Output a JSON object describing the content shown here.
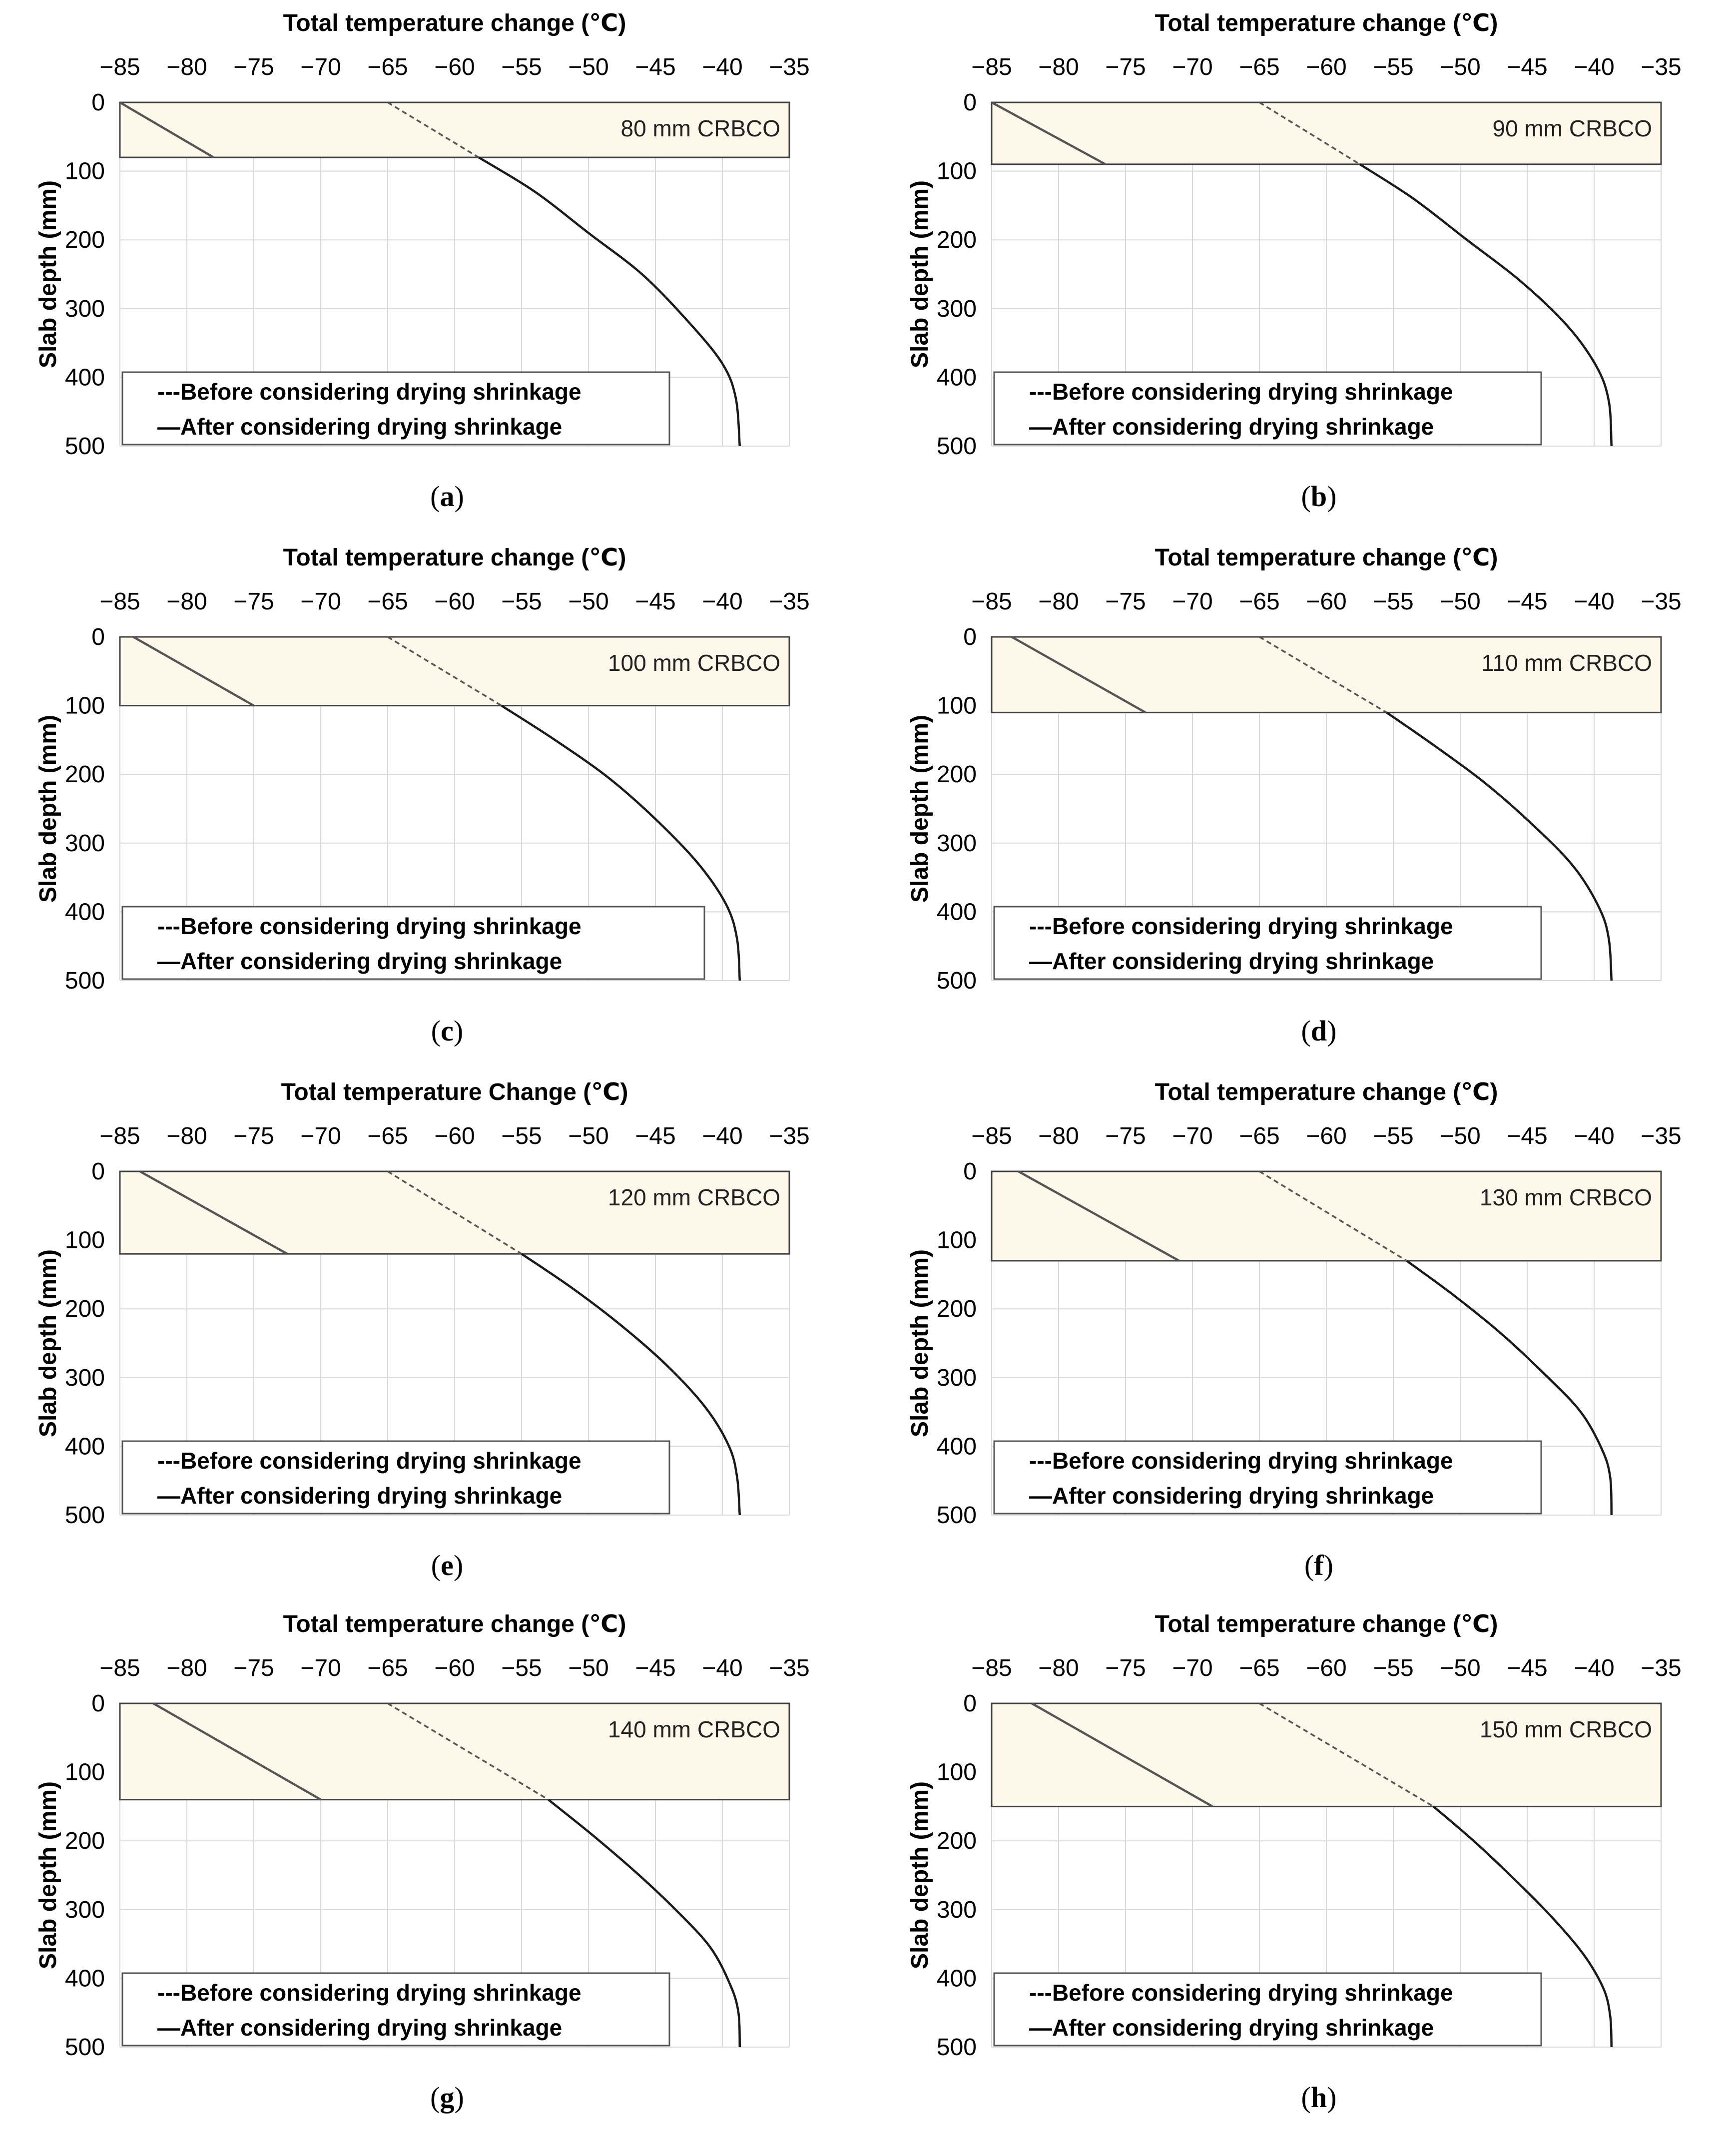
{
  "legend": {
    "before": "---Before considering drying shrinkage",
    "after": "—After considering drying shrinkage"
  },
  "colors": {
    "overlay_band": "#fdf8e9",
    "grid": "#d9d9d9",
    "curve": "#1a1a1a"
  },
  "chart_data": [
    {
      "type": "line",
      "label": "a",
      "title": "Total temperature change (℃)",
      "xlabel": "Total temperature change (℃)",
      "ylabel": "Slab depth (mm)",
      "xlim": [
        -85,
        -35
      ],
      "ylim": [
        0,
        500
      ],
      "x_ticks": [
        -85,
        -80,
        -75,
        -70,
        -65,
        -60,
        -55,
        -50,
        -45,
        -40,
        -35
      ],
      "y_ticks": [
        0,
        100,
        200,
        300,
        400,
        500
      ],
      "overlay_depth_mm": 80,
      "overlay_label": "80 mm CRBCO",
      "series": [
        {
          "name": "Before considering drying shrinkage",
          "style": "dashed",
          "x": [
            -65.0,
            -58.2
          ],
          "y": [
            0,
            80
          ]
        },
        {
          "name": "After considering drying shrinkage (overlay)",
          "style": "solid",
          "x": [
            -85.0,
            -78.0
          ],
          "y": [
            0,
            80
          ]
        },
        {
          "name": "After considering drying shrinkage (substrate)",
          "style": "solid",
          "x": [
            -58.2,
            -54.0,
            -50.0,
            -46.0,
            -42.5,
            -40.0,
            -39.0,
            -38.7
          ],
          "y": [
            80,
            130,
            190,
            250,
            320,
            380,
            430,
            500
          ]
        }
      ]
    },
    {
      "type": "line",
      "label": "b",
      "title": "Total temperature change (℃)",
      "xlabel": "Total temperature change (℃)",
      "ylabel": "Slab depth (mm)",
      "xlim": [
        -85,
        -35
      ],
      "ylim": [
        0,
        500
      ],
      "x_ticks": [
        -85,
        -80,
        -75,
        -70,
        -65,
        -60,
        -55,
        -50,
        -45,
        -40,
        -35
      ],
      "y_ticks": [
        0,
        100,
        200,
        300,
        400,
        500
      ],
      "overlay_depth_mm": 90,
      "overlay_label": "90 mm CRBCO",
      "series": [
        {
          "name": "Before considering drying shrinkage",
          "style": "dashed",
          "x": [
            -65.0,
            -57.5
          ],
          "y": [
            0,
            90
          ]
        },
        {
          "name": "After considering drying shrinkage (overlay)",
          "style": "solid",
          "x": [
            -85.0,
            -76.5
          ],
          "y": [
            0,
            90
          ]
        },
        {
          "name": "After considering drying shrinkage (substrate)",
          "style": "solid",
          "x": [
            -57.5,
            -53.5,
            -49.5,
            -45.5,
            -42.0,
            -39.8,
            -38.9,
            -38.7
          ],
          "y": [
            90,
            140,
            200,
            260,
            325,
            385,
            435,
            500
          ]
        }
      ]
    },
    {
      "type": "line",
      "label": "c",
      "title": "Total temperature change (℃)",
      "xlabel": "Total temperature change (℃)",
      "ylabel": "Slab depth (mm)",
      "xlim": [
        -85,
        -35
      ],
      "ylim": [
        0,
        500
      ],
      "x_ticks": [
        -85,
        -80,
        -75,
        -70,
        -65,
        -60,
        -55,
        -50,
        -45,
        -40,
        -35
      ],
      "y_ticks": [
        0,
        100,
        200,
        300,
        400,
        500
      ],
      "overlay_depth_mm": 100,
      "overlay_label": "100 mm CRBCO",
      "series": [
        {
          "name": "Before considering drying shrinkage",
          "style": "dashed",
          "x": [
            -65.0,
            -56.5
          ],
          "y": [
            0,
            100
          ]
        },
        {
          "name": "After considering drying shrinkage (overlay)",
          "style": "solid",
          "x": [
            -84.0,
            -75.0
          ],
          "y": [
            0,
            100
          ]
        },
        {
          "name": "After considering drying shrinkage (substrate)",
          "style": "solid",
          "x": [
            -56.5,
            -52.5,
            -48.5,
            -45.0,
            -41.8,
            -39.7,
            -38.9,
            -38.7
          ],
          "y": [
            100,
            150,
            205,
            265,
            330,
            390,
            440,
            500
          ]
        }
      ]
    },
    {
      "type": "line",
      "label": "d",
      "title": "Total temperature change (℃)",
      "xlabel": "Total temperature change (℃)",
      "ylabel": "Slab depth (mm)",
      "xlim": [
        -85,
        -35
      ],
      "ylim": [
        0,
        500
      ],
      "x_ticks": [
        -85,
        -80,
        -75,
        -70,
        -65,
        -60,
        -55,
        -50,
        -45,
        -40,
        -35
      ],
      "y_ticks": [
        0,
        100,
        200,
        300,
        400,
        500
      ],
      "overlay_depth_mm": 110,
      "overlay_label": "110 mm CRBCO",
      "series": [
        {
          "name": "Before considering drying shrinkage",
          "style": "dashed",
          "x": [
            -65.0,
            -55.5
          ],
          "y": [
            0,
            110
          ]
        },
        {
          "name": "After considering drying shrinkage (overlay)",
          "style": "solid",
          "x": [
            -83.5,
            -73.5
          ],
          "y": [
            0,
            110
          ]
        },
        {
          "name": "After considering drying shrinkage (substrate)",
          "style": "solid",
          "x": [
            -55.5,
            -51.8,
            -48.0,
            -44.5,
            -41.5,
            -39.6,
            -38.9,
            -38.7
          ],
          "y": [
            110,
            160,
            215,
            275,
            335,
            395,
            440,
            500
          ]
        }
      ]
    },
    {
      "type": "line",
      "label": "e",
      "title": "Total temperature Change (℃)",
      "xlabel": "Total temperature Change (℃)",
      "ylabel": "Slab depth (mm)",
      "xlim": [
        -85,
        -35
      ],
      "ylim": [
        0,
        500
      ],
      "x_ticks": [
        -85,
        -80,
        -75,
        -70,
        -65,
        -60,
        -55,
        -50,
        -45,
        -40,
        -35
      ],
      "y_ticks": [
        0,
        100,
        200,
        300,
        400,
        500
      ],
      "overlay_depth_mm": 120,
      "overlay_label": "120 mm CRBCO",
      "series": [
        {
          "name": "Before considering drying shrinkage",
          "style": "dashed",
          "x": [
            -65.0,
            -55.0
          ],
          "y": [
            0,
            120
          ]
        },
        {
          "name": "After considering drying shrinkage (overlay)",
          "style": "solid",
          "x": [
            -83.5,
            -72.5
          ],
          "y": [
            0,
            120
          ]
        },
        {
          "name": "After considering drying shrinkage (substrate)",
          "style": "solid",
          "x": [
            -55.0,
            -51.2,
            -47.5,
            -44.0,
            -41.2,
            -39.5,
            -38.9,
            -38.7
          ],
          "y": [
            120,
            170,
            225,
            285,
            345,
            400,
            445,
            500
          ]
        }
      ]
    },
    {
      "type": "line",
      "label": "f",
      "title": "Total temperature change (℃)",
      "xlabel": "Total temperature change (℃)",
      "ylabel": "Slab depth (mm)",
      "xlim": [
        -85,
        -35
      ],
      "ylim": [
        0,
        500
      ],
      "x_ticks": [
        -85,
        -80,
        -75,
        -70,
        -65,
        -60,
        -55,
        -50,
        -45,
        -40,
        -35
      ],
      "y_ticks": [
        0,
        100,
        200,
        300,
        400,
        500
      ],
      "overlay_depth_mm": 130,
      "overlay_label": "130 mm CRBCO",
      "series": [
        {
          "name": "Before considering drying shrinkage",
          "style": "dashed",
          "x": [
            -65.0,
            -54.0
          ],
          "y": [
            0,
            130
          ]
        },
        {
          "name": "After considering drying shrinkage (overlay)",
          "style": "solid",
          "x": [
            -83.0,
            -71.0
          ],
          "y": [
            0,
            130
          ]
        },
        {
          "name": "After considering drying shrinkage (substrate)",
          "style": "solid",
          "x": [
            -54.0,
            -50.5,
            -47.0,
            -43.7,
            -41.0,
            -39.4,
            -38.8,
            -38.7
          ],
          "y": [
            130,
            180,
            235,
            295,
            350,
            405,
            445,
            500
          ]
        }
      ]
    },
    {
      "type": "line",
      "label": "g",
      "title": "Total temperature change (℃)",
      "xlabel": "Total temperature change (℃)",
      "ylabel": "Slab depth (mm)",
      "xlim": [
        -85,
        -35
      ],
      "ylim": [
        0,
        500
      ],
      "x_ticks": [
        -85,
        -80,
        -75,
        -70,
        -65,
        -60,
        -55,
        -50,
        -45,
        -40,
        -35
      ],
      "y_ticks": [
        0,
        100,
        200,
        300,
        400,
        500
      ],
      "overlay_depth_mm": 140,
      "overlay_label": "140 mm CRBCO",
      "series": [
        {
          "name": "Before considering drying shrinkage",
          "style": "dashed",
          "x": [
            -65.0,
            -53.0
          ],
          "y": [
            0,
            140
          ]
        },
        {
          "name": "After considering drying shrinkage (overlay)",
          "style": "solid",
          "x": [
            -82.5,
            -70.0
          ],
          "y": [
            0,
            140
          ]
        },
        {
          "name": "After considering drying shrinkage (substrate)",
          "style": "solid",
          "x": [
            -53.0,
            -49.8,
            -46.5,
            -43.5,
            -40.9,
            -39.4,
            -38.8,
            -38.7
          ],
          "y": [
            140,
            190,
            245,
            300,
            355,
            410,
            450,
            500
          ]
        }
      ]
    },
    {
      "type": "line",
      "label": "h",
      "title": "Total temperature change (℃)",
      "xlabel": "Total temperature change (℃)",
      "ylabel": "Slab depth (mm)",
      "xlim": [
        -85,
        -35
      ],
      "ylim": [
        0,
        500
      ],
      "x_ticks": [
        -85,
        -80,
        -75,
        -70,
        -65,
        -60,
        -55,
        -50,
        -45,
        -40,
        -35
      ],
      "y_ticks": [
        0,
        100,
        200,
        300,
        400,
        500
      ],
      "overlay_depth_mm": 150,
      "overlay_label": "150 mm CRBCO",
      "series": [
        {
          "name": "Before considering drying shrinkage",
          "style": "dashed",
          "x": [
            -65.0,
            -52.0
          ],
          "y": [
            0,
            150
          ]
        },
        {
          "name": "After considering drying shrinkage (overlay)",
          "style": "solid",
          "x": [
            -82.0,
            -68.5
          ],
          "y": [
            0,
            150
          ]
        },
        {
          "name": "After considering drying shrinkage (substrate)",
          "style": "solid",
          "x": [
            -52.0,
            -49.0,
            -46.0,
            -43.2,
            -40.8,
            -39.3,
            -38.8,
            -38.7
          ],
          "y": [
            150,
            200,
            255,
            310,
            365,
            415,
            455,
            500
          ]
        }
      ]
    }
  ]
}
